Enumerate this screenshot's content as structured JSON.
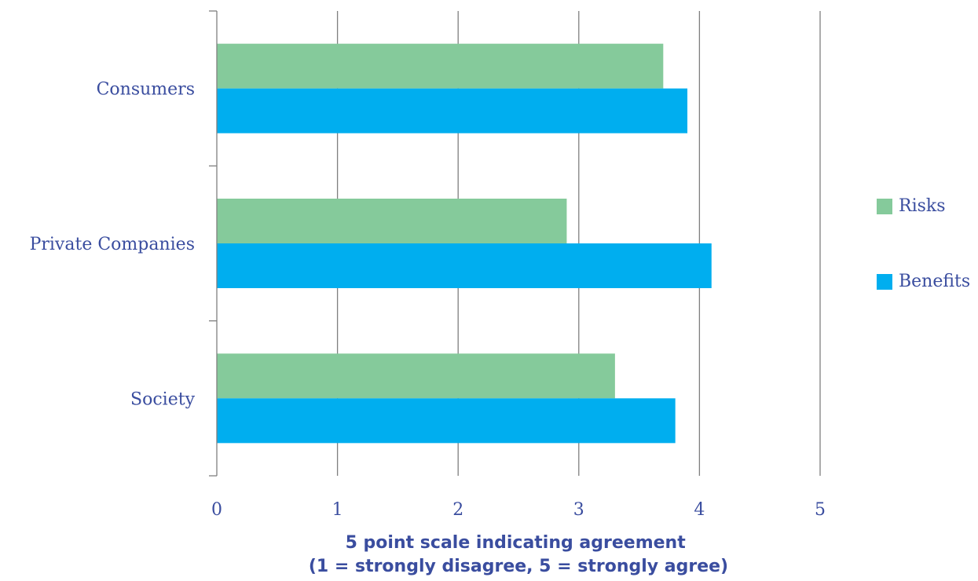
{
  "chart_data": {
    "type": "bar",
    "orientation": "horizontal",
    "categories": [
      "Consumers",
      "Private Companies",
      "Society"
    ],
    "series": [
      {
        "name": "Risks",
        "values": [
          3.7,
          2.9,
          3.3
        ],
        "color": "#85CA9B"
      },
      {
        "name": "Benefits",
        "values": [
          3.9,
          4.1,
          3.8
        ],
        "color": "#00AEEF"
      }
    ],
    "xlim": [
      0,
      5
    ],
    "xticks": [
      "0",
      "1",
      "2",
      "3",
      "4",
      "5"
    ],
    "xlabel": [
      "5 point scale indicating agreement",
      "(1 = strongly disagree, 5 = strongly agree)"
    ],
    "ylabel": "",
    "title": "",
    "grid": true,
    "legend_position": "right",
    "text_color": "#3A4D9F",
    "grid_color": "#7F7F7F"
  }
}
